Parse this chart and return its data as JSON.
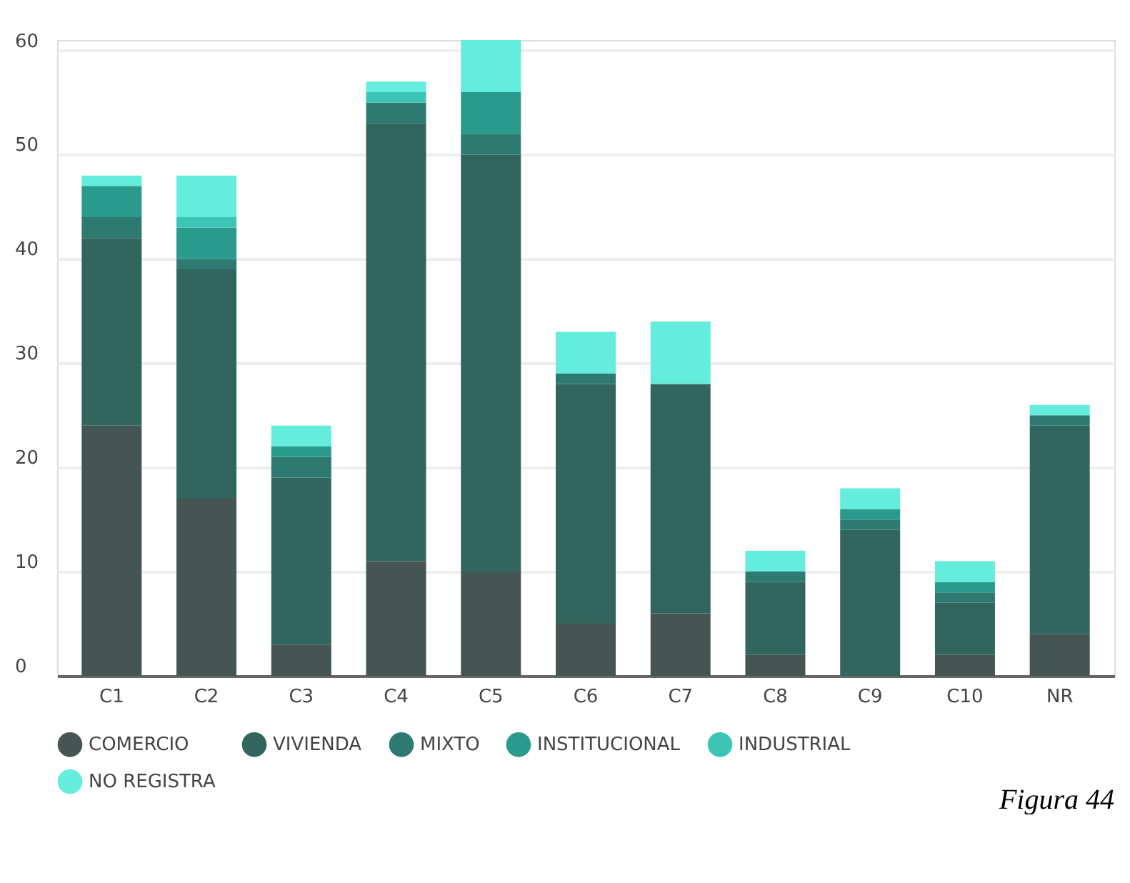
{
  "chart_data": {
    "type": "bar",
    "stacked": true,
    "categories": [
      "C1",
      "C2",
      "C3",
      "C4",
      "C5",
      "C6",
      "C7",
      "C8",
      "C9",
      "C10",
      "NR"
    ],
    "series": [
      {
        "name": "COMERCIO",
        "color": "#455553",
        "values": [
          24,
          17,
          3,
          11,
          10,
          5,
          6,
          2,
          0,
          2,
          4
        ]
      },
      {
        "name": "VIVIENDA",
        "color": "#33655f",
        "values": [
          18,
          22,
          16,
          42,
          40,
          23,
          22,
          7,
          14,
          5,
          20
        ]
      },
      {
        "name": "MIXTO",
        "color": "#2e7a70",
        "values": [
          2,
          1,
          2,
          2,
          2,
          1,
          0,
          1,
          1,
          1,
          1
        ]
      },
      {
        "name": "INSTITUCIONAL",
        "color": "#2a9a8c",
        "values": [
          3,
          3,
          1,
          0,
          4,
          0,
          0,
          0,
          1,
          1,
          0
        ]
      },
      {
        "name": "INDUSTRIAL",
        "color": "#3cc4b4",
        "values": [
          0,
          1,
          0,
          1,
          0,
          0,
          0,
          0,
          0,
          0,
          0
        ]
      },
      {
        "name": "NO REGISTRA",
        "color": "#64ecdc",
        "values": [
          1,
          4,
          2,
          1,
          5,
          4,
          6,
          2,
          2,
          2,
          1
        ]
      }
    ],
    "ylim": [
      0,
      61
    ],
    "yticks": [
      0,
      10,
      20,
      30,
      40,
      50,
      60
    ],
    "grid": "y",
    "legend": "bottom",
    "annotations": [
      "Figura 44"
    ]
  }
}
